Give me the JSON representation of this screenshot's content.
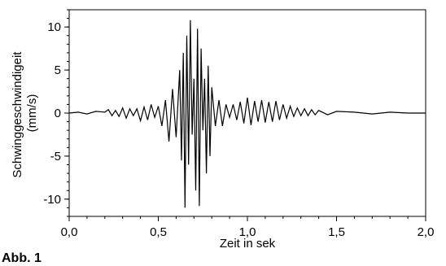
{
  "caption": "Abb. 1",
  "chart_data": {
    "type": "line",
    "title": "",
    "xlabel": "Zeit in sek",
    "ylabel_lines": [
      "Schwinggeschwindigeit",
      "(mm/s)"
    ],
    "xlim": [
      0.0,
      2.0
    ],
    "ylim": [
      -12,
      12
    ],
    "xticks": [
      0.0,
      0.5,
      1.0,
      1.5,
      2.0
    ],
    "xtick_labels": [
      "0,0",
      "0,5",
      "1,0",
      "1,5",
      "2,0"
    ],
    "yticks": [
      10,
      5,
      0,
      -5,
      -10
    ],
    "ytick_labels": [
      "10",
      "5",
      "0",
      "-5",
      "-10"
    ],
    "grid": false,
    "series": [
      {
        "x": [
          0.0,
          0.05,
          0.1,
          0.15,
          0.2,
          0.22,
          0.24,
          0.26,
          0.28,
          0.3,
          0.32,
          0.34,
          0.36,
          0.38,
          0.4,
          0.42,
          0.44,
          0.46,
          0.48,
          0.5,
          0.52,
          0.54,
          0.56,
          0.58,
          0.6,
          0.62,
          0.63,
          0.64,
          0.65,
          0.66,
          0.67,
          0.68,
          0.69,
          0.7,
          0.71,
          0.72,
          0.73,
          0.74,
          0.75,
          0.76,
          0.77,
          0.78,
          0.79,
          0.8,
          0.82,
          0.84,
          0.86,
          0.88,
          0.9,
          0.92,
          0.94,
          0.96,
          0.98,
          1.0,
          1.02,
          1.04,
          1.06,
          1.08,
          1.1,
          1.12,
          1.14,
          1.16,
          1.18,
          1.2,
          1.22,
          1.24,
          1.26,
          1.28,
          1.3,
          1.32,
          1.34,
          1.36,
          1.38,
          1.4,
          1.45,
          1.5,
          1.6,
          1.7,
          1.8,
          1.9,
          2.0
        ],
        "values": [
          0,
          0.1,
          -0.1,
          0.2,
          0.1,
          0.4,
          -0.3,
          0.3,
          -0.4,
          0.6,
          -0.6,
          0.5,
          -0.3,
          0.5,
          -0.9,
          0.7,
          -0.8,
          1.0,
          -0.5,
          0.8,
          -1.5,
          1.5,
          -3.3,
          2.8,
          -2.8,
          5.0,
          -5.5,
          7.0,
          -11.0,
          9.0,
          -6.0,
          10.8,
          -2.5,
          4.0,
          -9.0,
          9.8,
          -10.8,
          7.5,
          -2.0,
          4.0,
          -7.0,
          5.5,
          -5.0,
          3.0,
          -1.5,
          1.5,
          -1.5,
          1.0,
          -0.5,
          1.0,
          -0.8,
          1.3,
          -1.2,
          1.8,
          -1.4,
          1.4,
          -1.0,
          1.5,
          -1.1,
          1.3,
          -1.0,
          1.4,
          -0.8,
          1.0,
          -0.6,
          0.8,
          -0.4,
          0.6,
          -0.3,
          0.5,
          -0.3,
          0.4,
          -0.2,
          0.3,
          -0.2,
          0.2,
          0.1,
          -0.1,
          0.1,
          0.0,
          0.0
        ]
      }
    ]
  }
}
